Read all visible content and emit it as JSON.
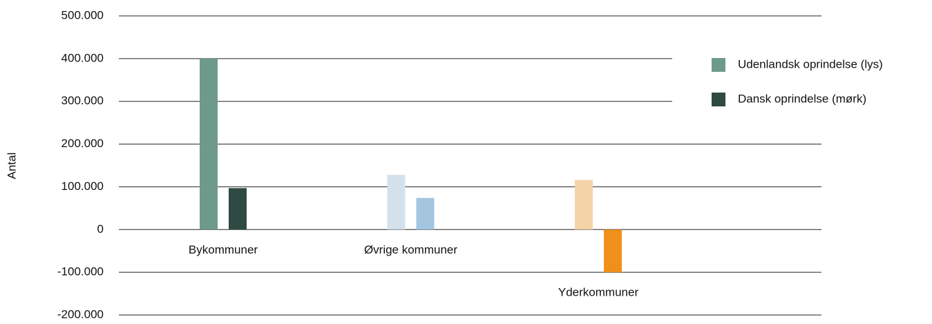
{
  "chart_data": {
    "type": "bar",
    "y_label": "Antal",
    "categories": [
      "Bykommuner",
      "Øvrige kommuner",
      "Yderkommuner"
    ],
    "series": [
      {
        "name": "Udenlandsk oprindelse (lys)",
        "color": "#6e9a8a",
        "colors": [
          "#6e9a8a",
          "#d5e1ea",
          "#f5d3a8"
        ],
        "values": [
          400000,
          128000,
          116000
        ]
      },
      {
        "name": "Dansk oprindelse (mørk)",
        "color": "#2e4a42",
        "colors": [
          "#2e4a42",
          "#a3c5e0",
          "#f0901a"
        ],
        "values": [
          97000,
          74000,
          -100000
        ]
      }
    ],
    "ylim": [
      -200000,
      500000
    ],
    "yticks": [
      {
        "value": 500000,
        "label": "500.000"
      },
      {
        "value": 400000,
        "label": "400.000"
      },
      {
        "value": 300000,
        "label": "300.000"
      },
      {
        "value": 200000,
        "label": "200.000"
      },
      {
        "value": 100000,
        "label": "100.000"
      },
      0,
      {
        "value": -100000,
        "label": "-100.000"
      },
      {
        "value": -200000,
        "label": "-200.000"
      }
    ],
    "grid": true,
    "legend_position": "upper right"
  }
}
